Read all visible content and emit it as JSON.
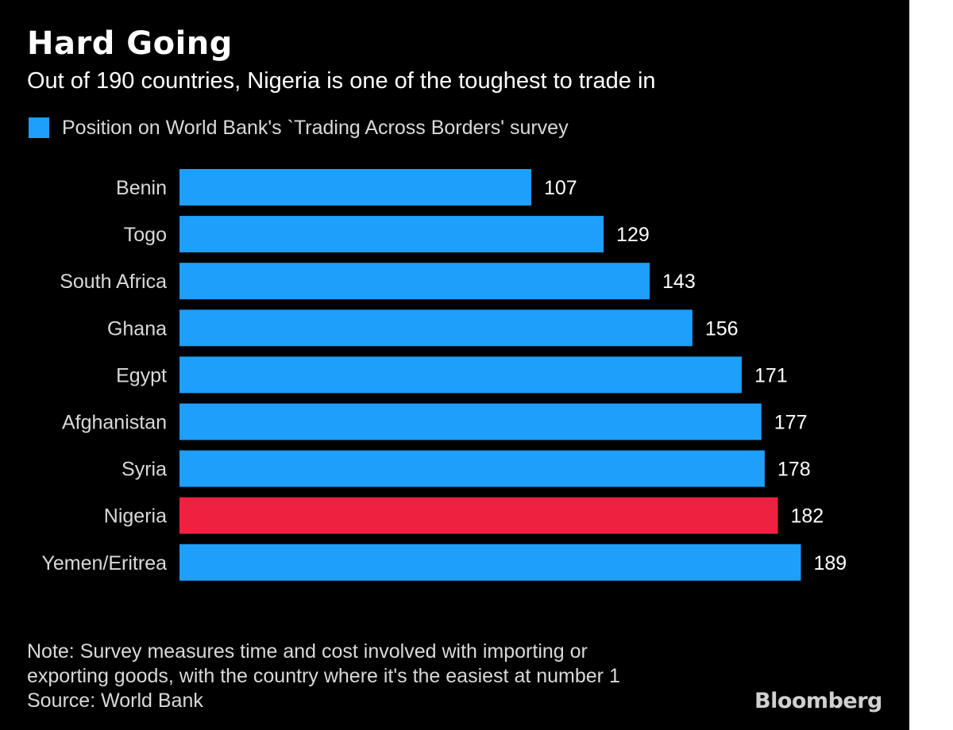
{
  "header": {
    "title": "Hard Going",
    "subtitle": "Out of 190 countries, Nigeria is one of the toughest to trade in"
  },
  "legend": {
    "label": "Position on World Bank's `Trading Across Borders' survey",
    "color": "#1e9ffc"
  },
  "colors": {
    "background": "#000000",
    "bar": "#1e9ffc",
    "highlight": "#ee2240",
    "text": "#ffffff",
    "muted_text": "#d9d9d9"
  },
  "chart_data": {
    "type": "bar",
    "orientation": "horizontal",
    "categories": [
      "Benin",
      "Togo",
      "South Africa",
      "Ghana",
      "Egypt",
      "Afghanistan",
      "Syria",
      "Nigeria",
      "Yemen/Eritrea"
    ],
    "series": [
      {
        "name": "Position on World Bank's `Trading Across Borders' survey",
        "values": [
          107,
          129,
          143,
          156,
          171,
          177,
          178,
          182,
          189
        ]
      }
    ],
    "highlight": "Nigeria",
    "data_labels": true,
    "xlim": [
      0,
      190
    ],
    "grid": false,
    "legend_position": "top-left"
  },
  "footer": {
    "note_lines": [
      "Note: Survey measures time and cost involved with importing or",
      "exporting goods, with the country where it's the easiest at number 1"
    ],
    "source": "Source: World Bank",
    "brand": "Bloomberg"
  }
}
